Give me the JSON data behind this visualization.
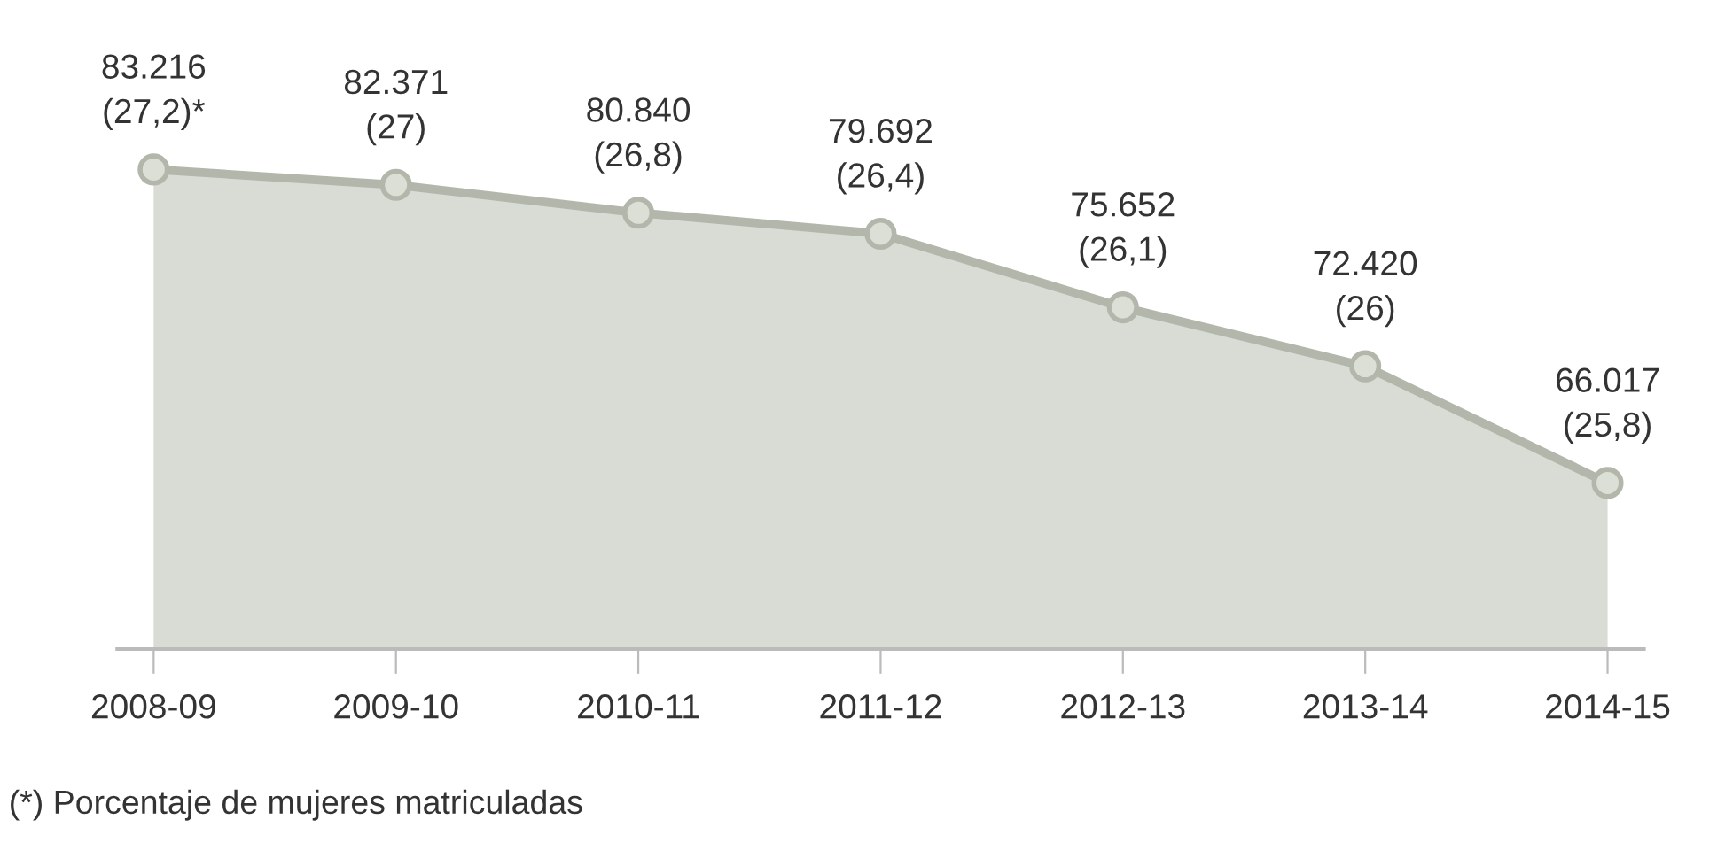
{
  "chart_data": {
    "type": "area",
    "categories": [
      "2008-09",
      "2009-10",
      "2010-11",
      "2011-12",
      "2012-13",
      "2013-14",
      "2014-15"
    ],
    "series": [
      {
        "color": "#b3b7ab",
        "values": [
          83216,
          82371,
          80840,
          79692,
          75652,
          72420,
          66017
        ],
        "value_labels": [
          "83.216\n(27,2)*",
          "82.371\n(27)",
          "80.840\n(26,8)",
          "79.692\n(26,4)",
          "75.652\n(26,1)",
          "72.420\n(26)",
          "66.017\n(25,8)"
        ]
      }
    ],
    "tick_labels": "x",
    "marker": "circle",
    "line_style": "solid",
    "grid": false,
    "legend": false,
    "annotations": [
      "(*) Porcentaje de mujeres matriculadas"
    ]
  }
}
